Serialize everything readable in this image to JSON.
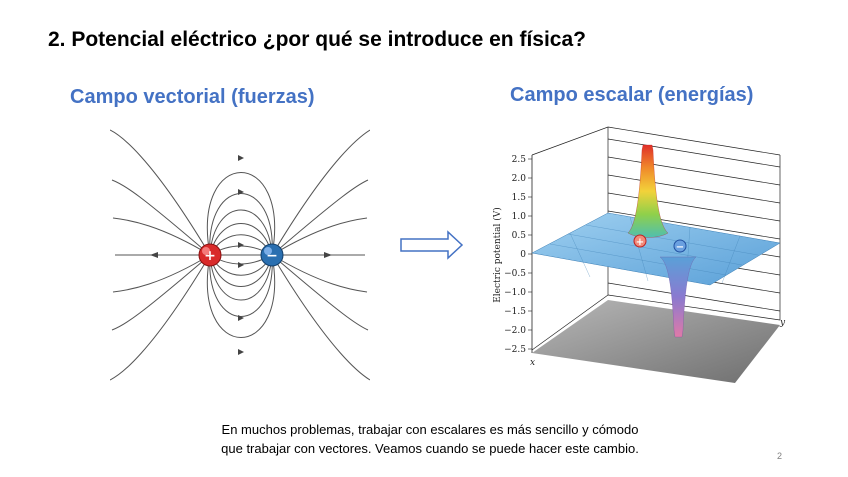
{
  "slide": {
    "title": "2. Potencial eléctrico ¿por qué se introduce en física?",
    "left_heading": "Campo vectorial (fuerzas)",
    "right_heading": "Campo escalar (energías)",
    "caption_line1": "En muchos problemas, trabajar con escalares es más sencillo y cómodo",
    "caption_line2": "que trabajar con vectores. Veamos cuando se puede hacer este cambio.",
    "page_number": "2"
  },
  "figure_left": {
    "positive_charge_sign": "+",
    "negative_charge_sign": "−",
    "colors": {
      "positive": "#d92b2b",
      "negative": "#2a6fb0"
    }
  },
  "figure_right": {
    "yaxis_label": "Electric potential (V)",
    "ytick_labels": [
      "2.5",
      "2.0",
      "1.5",
      "1.0",
      "0.5",
      "0",
      "−0.5",
      "−1.0",
      "−1.5",
      "−2.0",
      "−2.5"
    ],
    "xaxis_label": "x",
    "zaxis_label": "y",
    "positive_marker": "+",
    "negative_marker": "−"
  }
}
